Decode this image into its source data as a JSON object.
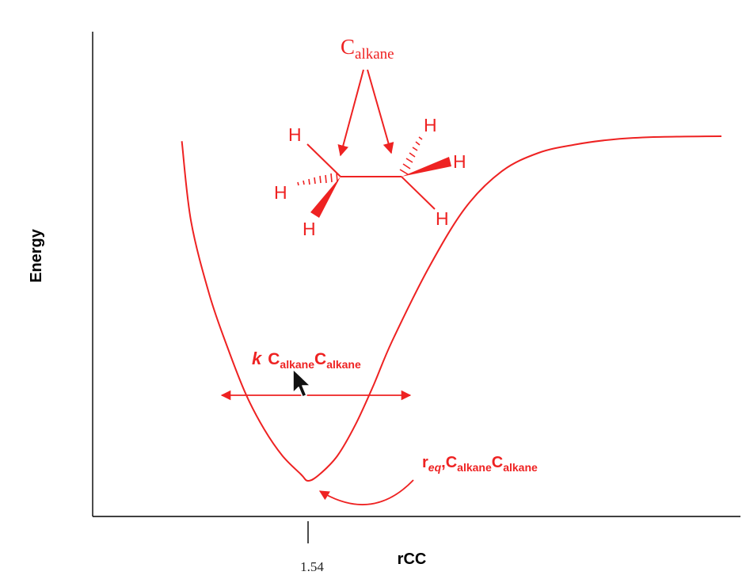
{
  "chart_data": {
    "type": "line",
    "xlabel": "rCC",
    "ylabel": "Energy",
    "x_ticks": [
      {
        "value": 1.54,
        "label": "1.54"
      }
    ],
    "series": [
      {
        "x": [
          0.85,
          0.9,
          1.0,
          1.1,
          1.2,
          1.3,
          1.4,
          1.5,
          1.54,
          1.6,
          1.7,
          1.8,
          1.9,
          2.0,
          2.2,
          2.4,
          2.6,
          2.8,
          3.0,
          3.2,
          3.4,
          3.6,
          3.8
        ],
        "y": [
          1.02,
          0.78,
          0.56,
          0.4,
          0.26,
          0.155,
          0.075,
          0.02,
          0.0,
          0.018,
          0.075,
          0.17,
          0.29,
          0.42,
          0.64,
          0.82,
          0.93,
          0.985,
          1.01,
          1.025,
          1.032,
          1.034,
          1.035
        ]
      }
    ],
    "color": "#ee2222",
    "annotations": {
      "molecule_label": {
        "main": "C",
        "sub": "alkane"
      },
      "hydrogen_labels": [
        "H",
        "H",
        "H",
        "H",
        "H",
        "H"
      ],
      "force_constant": {
        "italic": "k",
        "c1": "C",
        "sub1": "alkane",
        "c2": "C",
        "sub2": "alkane"
      },
      "equilibrium": {
        "r": "r",
        "sub": "eq",
        "comma": ",",
        "c1": "C",
        "sub1": "alkane",
        "c2": "C",
        "sub2": "alkane"
      }
    }
  }
}
